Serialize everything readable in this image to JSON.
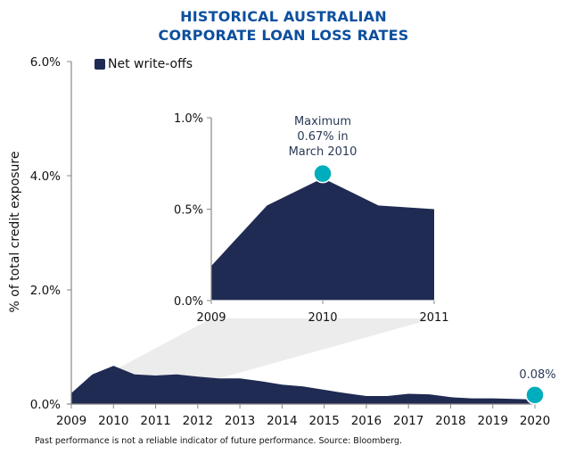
{
  "title_lines": [
    "HISTORICAL AUSTRALIAN",
    "CORPORATE LOAN LOSS RATES"
  ],
  "footnote": "Past performance is not a reliable indicator of future performance. Source: Bloomberg.",
  "colors": {
    "title": "#0d4f9e",
    "area": "#1f2b52",
    "marker": "#00adbd",
    "zoom_wedge": "#ececec",
    "axis": "#888888"
  },
  "chart_data": [
    {
      "id": "main",
      "type": "area",
      "title": "HISTORICAL AUSTRALIAN CORPORATE LOAN LOSS RATES",
      "xlabel": "",
      "ylabel": "% of total credit exposure",
      "legend": {
        "entries": [
          "Net write-offs"
        ],
        "placement": "top-left"
      },
      "xlim": [
        2009,
        2020
      ],
      "ylim": [
        0,
        6
      ],
      "x_ticks": [
        "2009",
        "2010",
        "2011",
        "2012",
        "2013",
        "2014",
        "2015",
        "2016",
        "2017",
        "2018",
        "2019",
        "2020"
      ],
      "y_ticks": [
        {
          "value": 0,
          "label": "0.0%"
        },
        {
          "value": 2,
          "label": "2.0%"
        },
        {
          "value": 4,
          "label": "4.0%"
        },
        {
          "value": 6,
          "label": "6.0%"
        }
      ],
      "grid": false,
      "series": [
        {
          "name": "Net write-offs",
          "x": [
            2009,
            2009.5,
            2010,
            2010.5,
            2011,
            2011.5,
            2012,
            2012.5,
            2013,
            2013.5,
            2014,
            2014.5,
            2015,
            2015.5,
            2016,
            2016.5,
            2017,
            2017.5,
            2018,
            2018.5,
            2019,
            2019.5,
            2020
          ],
          "values": [
            0.19,
            0.52,
            0.67,
            0.52,
            0.5,
            0.52,
            0.48,
            0.45,
            0.45,
            0.4,
            0.34,
            0.31,
            0.25,
            0.19,
            0.14,
            0.14,
            0.18,
            0.17,
            0.12,
            0.1,
            0.1,
            0.09,
            0.08
          ]
        }
      ],
      "annotations": [
        {
          "x": 2020,
          "y": 0.08,
          "label": "0.08%"
        }
      ],
      "zoom_range": {
        "x": [
          2009,
          2011
        ],
        "y": [
          0,
          1
        ]
      }
    },
    {
      "id": "inset",
      "type": "area",
      "title": "",
      "xlim": [
        2009,
        2011
      ],
      "ylim": [
        0,
        1
      ],
      "x_ticks": [
        "2009",
        "2010",
        "2011"
      ],
      "y_ticks": [
        {
          "value": 0,
          "label": "0.0%"
        },
        {
          "value": 0.5,
          "label": "0.5%"
        },
        {
          "value": 1,
          "label": "1.0%"
        }
      ],
      "grid": false,
      "series": [
        {
          "name": "Net write-offs",
          "x": [
            2009,
            2009.5,
            2010,
            2010.5,
            2011
          ],
          "values": [
            0.19,
            0.52,
            0.67,
            0.52,
            0.5
          ]
        }
      ],
      "annotations": [
        {
          "x": 2010,
          "y": 0.67,
          "label_lines": [
            "Maximum",
            "0.67% in",
            "March 2010"
          ]
        }
      ]
    }
  ]
}
